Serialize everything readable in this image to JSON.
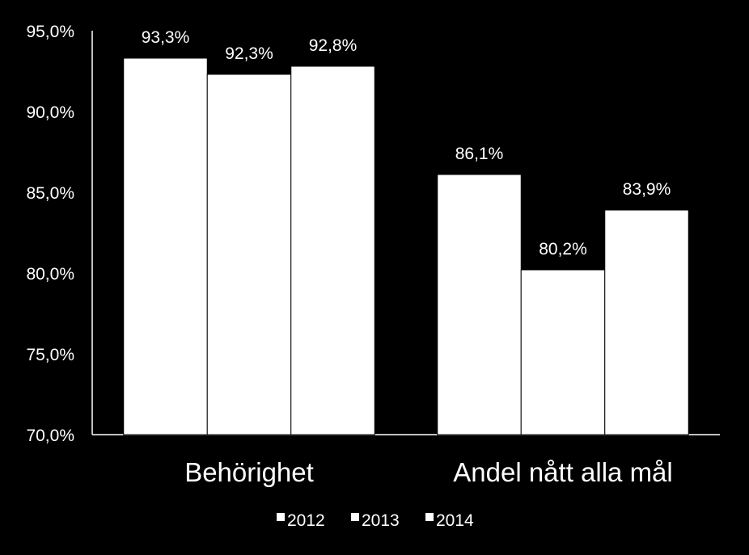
{
  "colors": {
    "background": "#000000",
    "bar": "#ffffff",
    "text": "#ffffff",
    "axis": "#ffffff"
  },
  "chart_data": {
    "type": "bar",
    "categories": [
      "Behörighet",
      "Andel nått alla mål"
    ],
    "series": [
      {
        "name": "2012",
        "values": [
          93.3,
          86.1
        ],
        "labels": [
          "93,3%",
          "86,1%"
        ]
      },
      {
        "name": "2013",
        "values": [
          92.3,
          80.2
        ],
        "labels": [
          "92,3%",
          "80,2%"
        ]
      },
      {
        "name": "2014",
        "values": [
          92.8,
          83.9
        ],
        "labels": [
          "92,8%",
          "83,9%"
        ]
      }
    ],
    "ylim": [
      70,
      95
    ],
    "yticks": [
      {
        "value": 95,
        "label": "95,0%"
      },
      {
        "value": 90,
        "label": "90,0%"
      },
      {
        "value": 85,
        "label": "85,0%"
      },
      {
        "value": 80,
        "label": "80,0%"
      },
      {
        "value": 75,
        "label": "75,0%"
      },
      {
        "value": 70,
        "label": "70,0%"
      }
    ],
    "grid": false,
    "legend": "bottom",
    "title": "",
    "xlabel": "",
    "ylabel": ""
  }
}
